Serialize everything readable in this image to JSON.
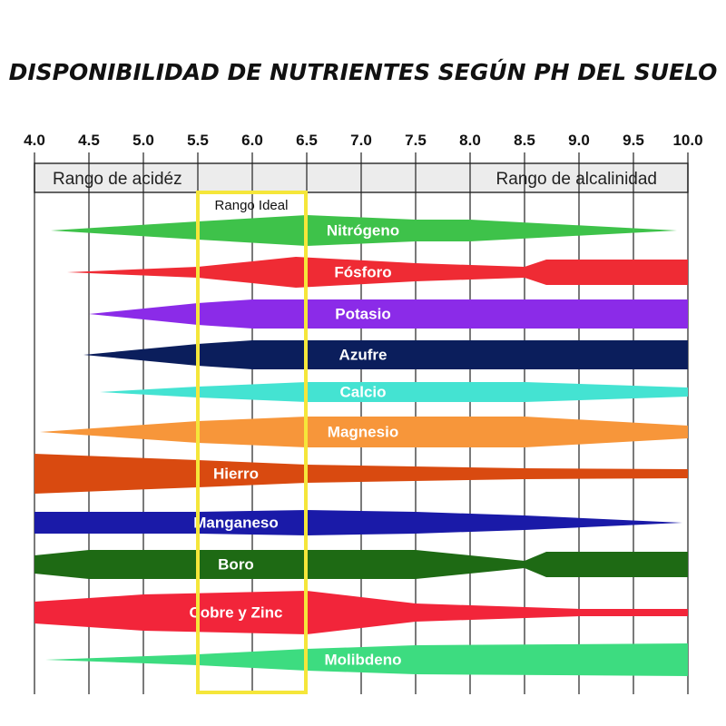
{
  "title": "DISPONIBILIDAD DE NUTRIENTES SEGÚN PH DEL SUELO",
  "axis": {
    "ticks": [
      {
        "value": 4.0,
        "label": "4.0"
      },
      {
        "value": 4.5,
        "label": "4.5"
      },
      {
        "value": 5.0,
        "label": "5.0"
      },
      {
        "value": 5.5,
        "label": "5.5"
      },
      {
        "value": 6.0,
        "label": "6.0"
      },
      {
        "value": 6.5,
        "label": "6.5"
      },
      {
        "value": 7.0,
        "label": "7.0"
      },
      {
        "value": 7.5,
        "label": "7.5"
      },
      {
        "value": 8.0,
        "label": "8.0"
      },
      {
        "value": 8.5,
        "label": "8.5"
      },
      {
        "value": 9.0,
        "label": "9.0"
      },
      {
        "value": 9.5,
        "label": "9.5"
      },
      {
        "value": 10.0,
        "label": "10.0"
      }
    ]
  },
  "header": {
    "left": "Rango de acidéz",
    "right": "Rango de alcalinidad"
  },
  "ideal_label": "Rango Ideal",
  "nutrients": [
    {
      "name": "Nitrógeno",
      "color": "#3ec24a"
    },
    {
      "name": "Fósforo",
      "color": "#ef2b34"
    },
    {
      "name": "Potasio",
      "color": "#8b2be8"
    },
    {
      "name": "Azufre",
      "color": "#0b1e5c"
    },
    {
      "name": "Calcio",
      "color": "#44e3d2"
    },
    {
      "name": "Magnesio",
      "color": "#f7963a"
    },
    {
      "name": "Hierro",
      "color": "#d94a10"
    },
    {
      "name": "Manganeso",
      "color": "#1a1aa8"
    },
    {
      "name": "Boro",
      "color": "#1e6a14"
    },
    {
      "name": "Cobre y Zinc",
      "color": "#f2253a"
    },
    {
      "name": "Molibdeno",
      "color": "#3ddc80"
    }
  ]
}
